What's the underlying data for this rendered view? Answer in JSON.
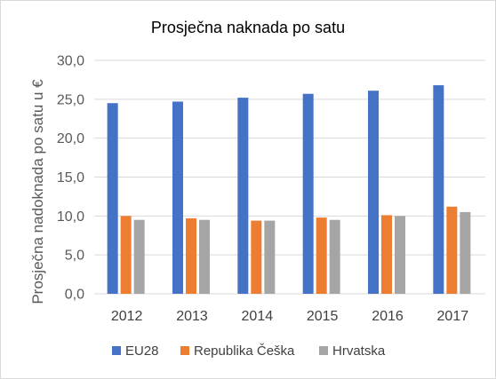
{
  "chart_data": {
    "type": "bar",
    "title": "Prosječna naknada po satu",
    "xlabel": "",
    "ylabel": "Prosječna nadoknada po satu u €",
    "categories": [
      "2012",
      "2013",
      "2014",
      "2015",
      "2016",
      "2017"
    ],
    "series": [
      {
        "name": "EU28",
        "color": "#4472c4",
        "values": [
          24.5,
          24.7,
          25.2,
          25.7,
          26.1,
          26.8
        ]
      },
      {
        "name": "Republika Češka",
        "color": "#ed7d31",
        "values": [
          10.0,
          9.7,
          9.4,
          9.8,
          10.1,
          11.2
        ]
      },
      {
        "name": "Hrvatska",
        "color": "#a5a5a5",
        "values": [
          9.5,
          9.5,
          9.4,
          9.5,
          10.0,
          10.5
        ]
      }
    ],
    "yticks": [
      "0,0",
      "5,0",
      "10,0",
      "15,0",
      "20,0",
      "25,0",
      "30,0"
    ],
    "ylim": [
      0,
      30
    ],
    "grid": true,
    "gridColor": "#d9d9d9",
    "legend": "bottom"
  }
}
